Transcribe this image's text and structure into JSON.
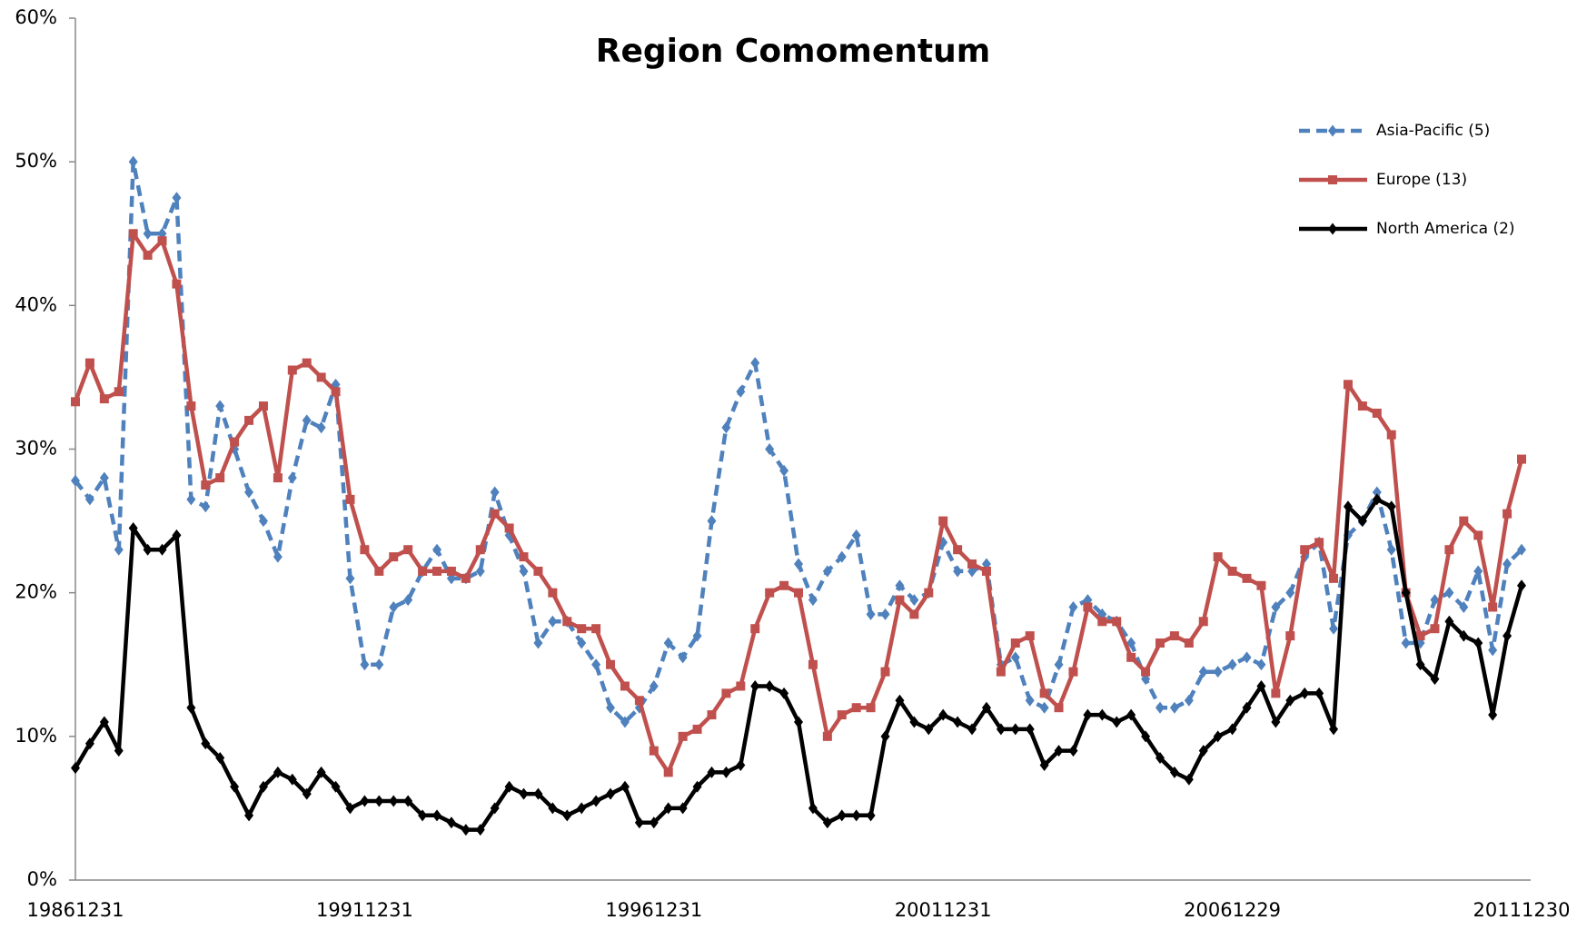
{
  "chart_data": {
    "type": "line",
    "title": "Region Comomentum",
    "categories": [
      "19861231",
      null,
      null,
      null,
      null,
      null,
      null,
      null,
      null,
      null,
      null,
      null,
      null,
      null,
      null,
      null,
      null,
      null,
      null,
      null,
      "19911231",
      null,
      null,
      null,
      null,
      null,
      null,
      null,
      null,
      null,
      null,
      null,
      null,
      null,
      null,
      null,
      null,
      null,
      null,
      null,
      "19961231",
      null,
      null,
      null,
      null,
      null,
      null,
      null,
      null,
      null,
      null,
      null,
      null,
      null,
      null,
      null,
      null,
      null,
      null,
      null,
      "20011231",
      null,
      null,
      null,
      null,
      null,
      null,
      null,
      null,
      null,
      null,
      null,
      null,
      null,
      null,
      null,
      null,
      null,
      null,
      null,
      "20061229",
      null,
      null,
      null,
      null,
      null,
      null,
      null,
      null,
      null,
      null,
      null,
      null,
      null,
      null,
      null,
      null,
      null,
      null,
      null,
      "20111230"
    ],
    "ylim": [
      0,
      60
    ],
    "yticks": [
      {
        "value": 0,
        "label": "0%"
      },
      {
        "value": 10,
        "label": "10%"
      },
      {
        "value": 20,
        "label": "20%"
      },
      {
        "value": 30,
        "label": "30%"
      },
      {
        "value": 40,
        "label": "40%"
      },
      {
        "value": 50,
        "label": "50%"
      },
      {
        "value": 60,
        "label": "60%"
      }
    ],
    "grid": false,
    "legend": "top right",
    "series": [
      {
        "name": "Asia-Pacific (5)",
        "color": "#4f81bd",
        "dash": true,
        "marker": "diamond",
        "values": [
          27.8,
          26.5,
          28,
          23,
          50,
          45,
          45,
          47.5,
          26.5,
          26,
          33,
          30,
          27,
          25,
          22.5,
          28,
          32,
          31.5,
          34.5,
          21,
          15,
          15,
          19,
          19.5,
          21.5,
          23,
          21,
          21,
          21.5,
          27,
          24,
          21.5,
          16.5,
          18,
          18,
          16.5,
          15,
          12,
          11,
          12,
          13.5,
          16.5,
          15.5,
          17,
          25,
          31.5,
          34,
          36,
          30,
          28.5,
          22,
          19.5,
          21.5,
          22.5,
          24,
          18.5,
          18.5,
          20.5,
          19.5,
          20,
          23.5,
          21.5,
          21.5,
          22,
          15,
          15.5,
          12.5,
          12,
          15,
          19,
          19.5,
          18.5,
          18,
          16.5,
          14,
          12,
          12,
          12.5,
          14.5,
          14.5,
          15,
          15.5,
          15,
          19,
          20,
          22.5,
          23.5,
          17.5,
          24,
          25,
          27,
          23,
          16.5,
          16.5,
          19.5,
          20,
          19,
          21.5,
          16,
          22,
          23
        ]
      },
      {
        "name": "Europe (13)",
        "color": "#c0504d",
        "dash": false,
        "marker": "square",
        "values": [
          33.3,
          36,
          33.5,
          34,
          45,
          43.5,
          44.5,
          41.5,
          33,
          27.5,
          28,
          30.5,
          32,
          33,
          28,
          35.5,
          36,
          35,
          34,
          26.5,
          23,
          21.5,
          22.5,
          23,
          21.5,
          21.5,
          21.5,
          21,
          23,
          25.5,
          24.5,
          22.5,
          21.5,
          20,
          18,
          17.5,
          17.5,
          15,
          13.5,
          12.5,
          9,
          7.5,
          10,
          10.5,
          11.5,
          13,
          13.5,
          17.5,
          20,
          20.5,
          20,
          15,
          10,
          11.5,
          12,
          12,
          14.5,
          19.5,
          18.5,
          20,
          25,
          23,
          22,
          21.5,
          14.5,
          16.5,
          17,
          13,
          12,
          14.5,
          19,
          18,
          18,
          15.5,
          14.5,
          16.5,
          17,
          16.5,
          18,
          22.5,
          21.5,
          21,
          20.5,
          13,
          17,
          23,
          23.5,
          21,
          34.5,
          33,
          32.5,
          31,
          20,
          17,
          17.5,
          23,
          25,
          24,
          19,
          25.5,
          29.3
        ]
      },
      {
        "name": "North America (2)",
        "color": "#000000",
        "dash": false,
        "marker": "diamond",
        "values": [
          7.8,
          9.5,
          11,
          9,
          24.5,
          23,
          23,
          24,
          12,
          9.5,
          8.5,
          6.5,
          4.5,
          6.5,
          7.5,
          7,
          6,
          7.5,
          6.5,
          5,
          5.5,
          5.5,
          5.5,
          5.5,
          4.5,
          4.5,
          4,
          3.5,
          3.5,
          5,
          6.5,
          6,
          6,
          5,
          4.5,
          5,
          5.5,
          6,
          6.5,
          4,
          4,
          5,
          5,
          6.5,
          7.5,
          7.5,
          8,
          13.5,
          13.5,
          13,
          11,
          5,
          4,
          4.5,
          4.5,
          4.5,
          10,
          12.5,
          11,
          10.5,
          11.5,
          11,
          10.5,
          12,
          10.5,
          10.5,
          10.5,
          8,
          9,
          9,
          11.5,
          11.5,
          11,
          11.5,
          10,
          8.5,
          7.5,
          7,
          9,
          10,
          10.5,
          12,
          13.5,
          11,
          12.5,
          13,
          13,
          10.5,
          26,
          25,
          26.5,
          26,
          20,
          15,
          14,
          18,
          17,
          16.5,
          11.5,
          17,
          20.5
        ]
      }
    ]
  }
}
